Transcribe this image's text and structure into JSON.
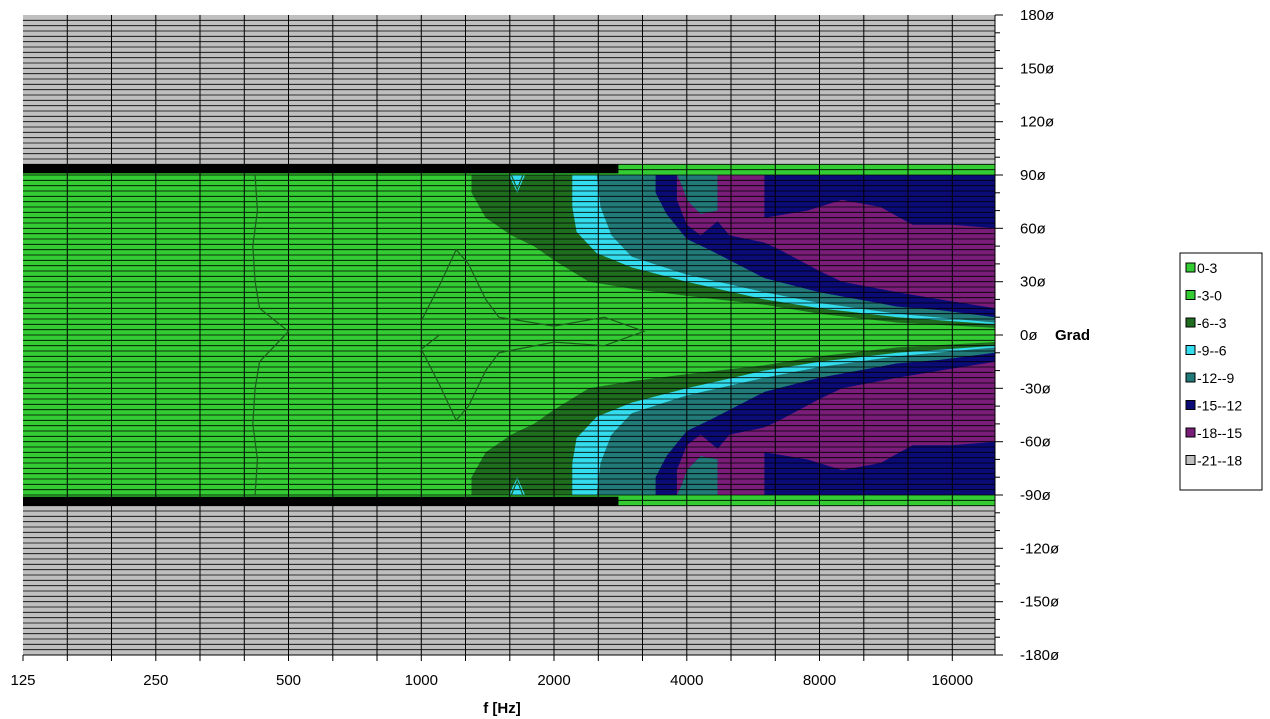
{
  "chart_data": {
    "type": "heatmap",
    "subtype": "polar-directivity-contour",
    "xlabel": "f [Hz]",
    "x_scale": "log2",
    "xlim": [
      125,
      20000
    ],
    "x_tick_labels": [
      "125",
      "250",
      "500",
      "1000",
      "2000",
      "4000",
      "8000",
      "16000"
    ],
    "x_tick_values": [
      125,
      250,
      500,
      1000,
      2000,
      4000,
      8000,
      16000
    ],
    "ylim": [
      -180,
      180
    ],
    "y_tick_values": [
      180,
      150,
      120,
      90,
      60,
      30,
      0,
      -30,
      -60,
      -90,
      -120,
      -150,
      -180
    ],
    "y_tick_labels": [
      "180ø",
      "150ø",
      "120ø",
      "90ø",
      "60ø",
      "30ø",
      "0ø",
      "-30ø",
      "-60ø",
      "-90ø",
      "-120ø",
      "-150ø",
      "-180ø"
    ],
    "y_unit_label": "Grad",
    "grid": true,
    "legend_position": "right",
    "levels": [
      {
        "label": "0-3",
        "color": "#33cc33"
      },
      {
        "label": "-3-0",
        "color": "#33cc33"
      },
      {
        "label": "-6--3",
        "color": "#1f6e1f"
      },
      {
        "label": "-9--6",
        "color": "#33ddee"
      },
      {
        "label": "-12--9",
        "color": "#217a78"
      },
      {
        "label": "-15--12",
        "color": "#0b0b77"
      },
      {
        "label": "-18--15",
        "color": "#7a1d78"
      },
      {
        "label": "-21--18",
        "color": "#bfbfbf"
      }
    ],
    "contours_hz_deg": [
      {
        "level": "-6--3",
        "points": [
          [
            1300,
            90
          ],
          [
            20000,
            90
          ],
          [
            20000,
            4
          ],
          [
            12000,
            7
          ],
          [
            8000,
            12
          ],
          [
            6000,
            17
          ],
          [
            4000,
            22
          ],
          [
            3000,
            26
          ],
          [
            2400,
            30
          ],
          [
            2000,
            42
          ],
          [
            1800,
            50
          ],
          [
            1600,
            56
          ],
          [
            1400,
            66
          ],
          [
            1300,
            80
          ]
        ]
      },
      {
        "level": "-9--6",
        "points": [
          [
            2200,
            90
          ],
          [
            20000,
            90
          ],
          [
            20000,
            6
          ],
          [
            12000,
            10
          ],
          [
            8000,
            15
          ],
          [
            6000,
            20
          ],
          [
            4000,
            30
          ],
          [
            3000,
            38
          ],
          [
            2500,
            46
          ],
          [
            2250,
            58
          ],
          [
            2200,
            72
          ]
        ]
      },
      {
        "level": "-12--9",
        "points": [
          [
            2500,
            90
          ],
          [
            20000,
            90
          ],
          [
            20000,
            7
          ],
          [
            12000,
            12
          ],
          [
            8000,
            18
          ],
          [
            6000,
            24
          ],
          [
            4000,
            34
          ],
          [
            3000,
            44
          ],
          [
            2700,
            56
          ],
          [
            2550,
            72
          ]
        ]
      },
      {
        "level": "-15--12",
        "points": [
          [
            3400,
            90
          ],
          [
            3800,
            90
          ],
          [
            3900,
            84
          ],
          [
            4000,
            76
          ],
          [
            4300,
            68
          ],
          [
            4700,
            70
          ],
          [
            4700,
            90
          ],
          [
            20000,
            90
          ],
          [
            20000,
            10
          ],
          [
            15000,
            14
          ],
          [
            12000,
            16
          ],
          [
            8000,
            24
          ],
          [
            6000,
            32
          ],
          [
            4500,
            48
          ],
          [
            4000,
            54
          ],
          [
            3600,
            68
          ],
          [
            3400,
            80
          ]
        ]
      },
      {
        "level": "-18--15",
        "points": [
          [
            3800,
            90
          ],
          [
            3900,
            84
          ],
          [
            4000,
            76
          ],
          [
            4300,
            68
          ],
          [
            4700,
            70
          ],
          [
            4700,
            90
          ],
          [
            6000,
            90
          ],
          [
            6000,
            66
          ],
          [
            7500,
            70
          ],
          [
            9000,
            76
          ],
          [
            11000,
            72
          ],
          [
            13000,
            62
          ],
          [
            16000,
            62
          ],
          [
            20000,
            60
          ],
          [
            20000,
            15
          ],
          [
            15000,
            20
          ],
          [
            12000,
            24
          ],
          [
            9000,
            30
          ],
          [
            8000,
            36
          ],
          [
            6500,
            48
          ],
          [
            6000,
            52
          ],
          [
            5000,
            56
          ],
          [
            4700,
            64
          ],
          [
            4300,
            56
          ],
          [
            4000,
            62
          ],
          [
            3800,
            76
          ]
        ]
      },
      {
        "level": "-21--18",
        "points": [
          [
            125,
            180
          ],
          [
            20000,
            180
          ],
          [
            20000,
            96
          ],
          [
            125,
            96
          ]
        ]
      },
      {
        "level": "-21--18",
        "points": [
          [
            125,
            -96
          ],
          [
            20000,
            -96
          ],
          [
            20000,
            -180
          ],
          [
            125,
            -180
          ]
        ]
      }
    ],
    "inner_contours_hz_deg": [
      {
        "points": [
          [
            420,
            90
          ],
          [
            425,
            70
          ],
          [
            415,
            50
          ],
          [
            420,
            30
          ],
          [
            430,
            15
          ],
          [
            500,
            2
          ],
          [
            430,
            -15
          ],
          [
            420,
            -30
          ],
          [
            415,
            -50
          ],
          [
            425,
            -70
          ],
          [
            420,
            -90
          ]
        ]
      },
      {
        "points": [
          [
            1000,
            8
          ],
          [
            1100,
            28
          ],
          [
            1200,
            48
          ],
          [
            1280,
            40
          ],
          [
            1400,
            20
          ],
          [
            1500,
            10
          ],
          [
            2000,
            5
          ],
          [
            2600,
            10
          ],
          [
            3200,
            2
          ],
          [
            2600,
            -6
          ],
          [
            2000,
            -4
          ],
          [
            1500,
            -10
          ],
          [
            1400,
            -20
          ],
          [
            1280,
            -40
          ],
          [
            1200,
            -48
          ],
          [
            1100,
            -28
          ],
          [
            1000,
            -8
          ],
          [
            1100,
            0
          ]
        ]
      },
      {
        "points": [
          [
            1600,
            90
          ],
          [
            1650,
            82
          ],
          [
            1700,
            90
          ]
        ]
      },
      {
        "points": [
          [
            1600,
            -90
          ],
          [
            1650,
            -82
          ],
          [
            1700,
            -90
          ]
        ]
      }
    ],
    "light_blue_pocket_hz_deg": [
      {
        "points": [
          [
            1580,
            90
          ],
          [
            1650,
            80
          ],
          [
            1720,
            90
          ]
        ]
      },
      {
        "points": [
          [
            1580,
            -90
          ],
          [
            1650,
            -80
          ],
          [
            1720,
            -90
          ]
        ]
      }
    ]
  }
}
